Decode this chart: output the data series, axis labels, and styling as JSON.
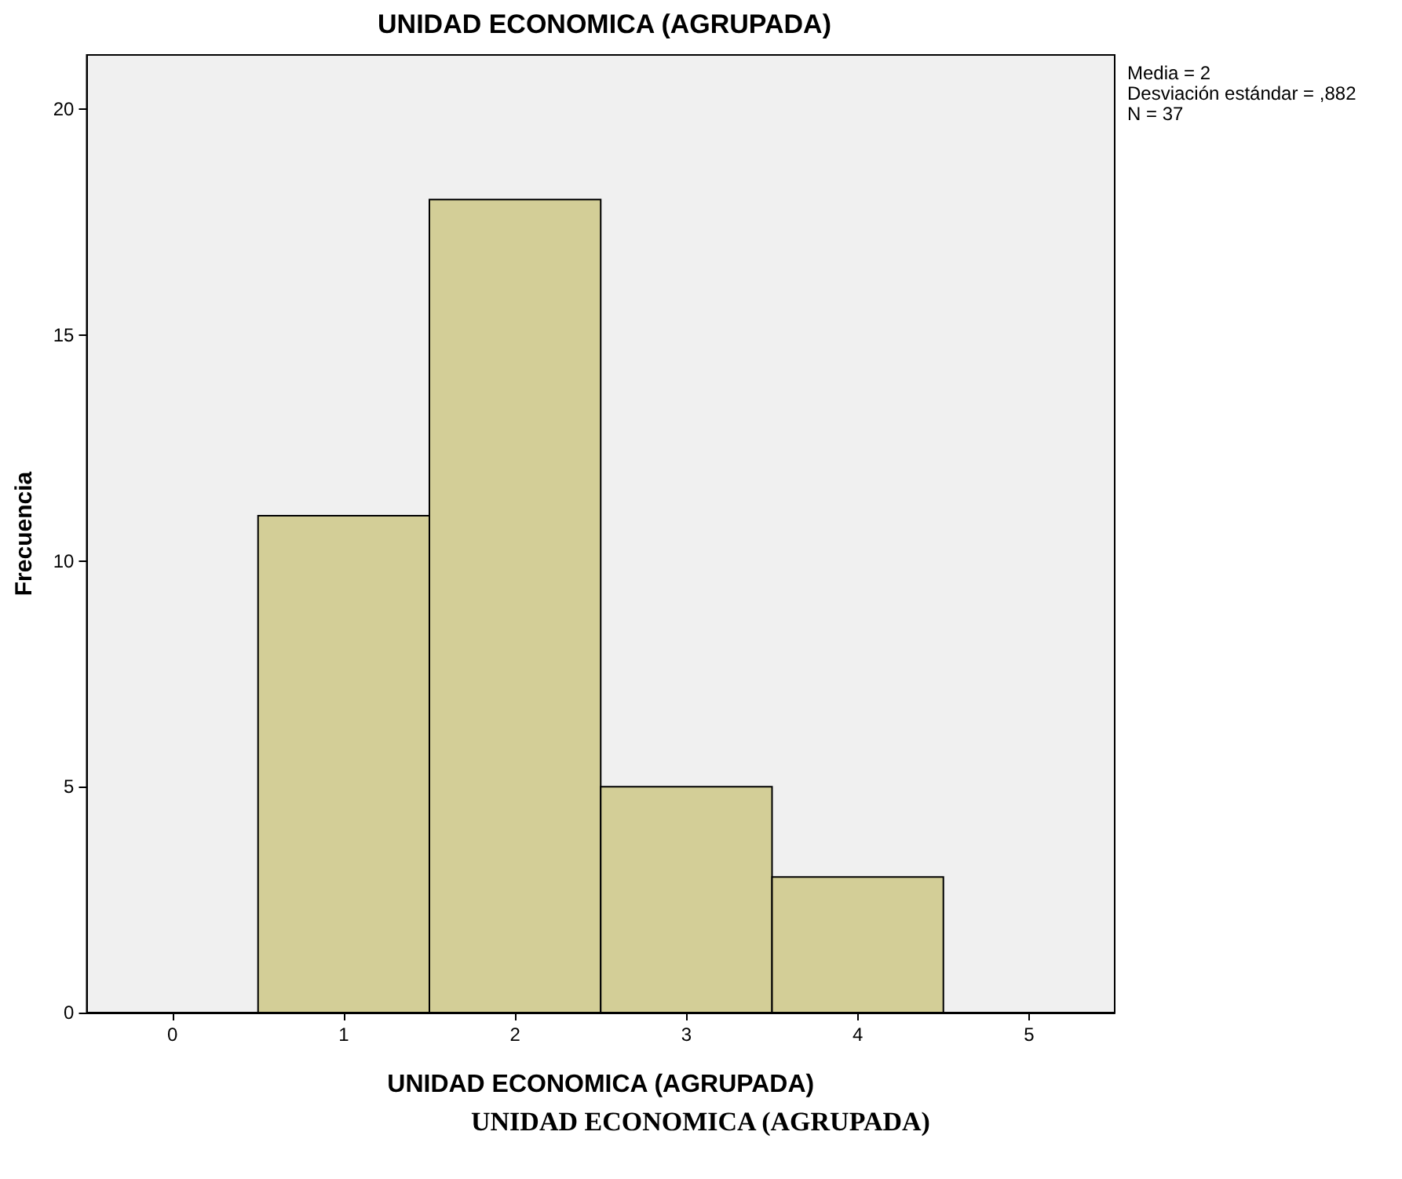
{
  "chart_data": {
    "type": "histogram",
    "title": "UNIDAD ECONOMICA (AGRUPADA)",
    "xlabel": "UNIDAD ECONOMICA (AGRUPADA)",
    "ylabel": "Frecuencia",
    "bins": [
      0.5,
      1.5,
      2.5,
      3.5,
      4.5
    ],
    "values": [
      11,
      18,
      5,
      3
    ],
    "color": "#d3ce97",
    "xlim": [
      -0.5,
      5.5
    ],
    "xticks": [
      0,
      1,
      2,
      3,
      4,
      5
    ],
    "ylim": [
      0,
      21.2
    ],
    "yticks": [
      0,
      5,
      10,
      15,
      20
    ],
    "annotations": [
      "Media = 2",
      "Desviación estándar = ,882",
      "N = 37",
      "UNIDAD ECONOMICA (AGRUPADA)"
    ]
  }
}
